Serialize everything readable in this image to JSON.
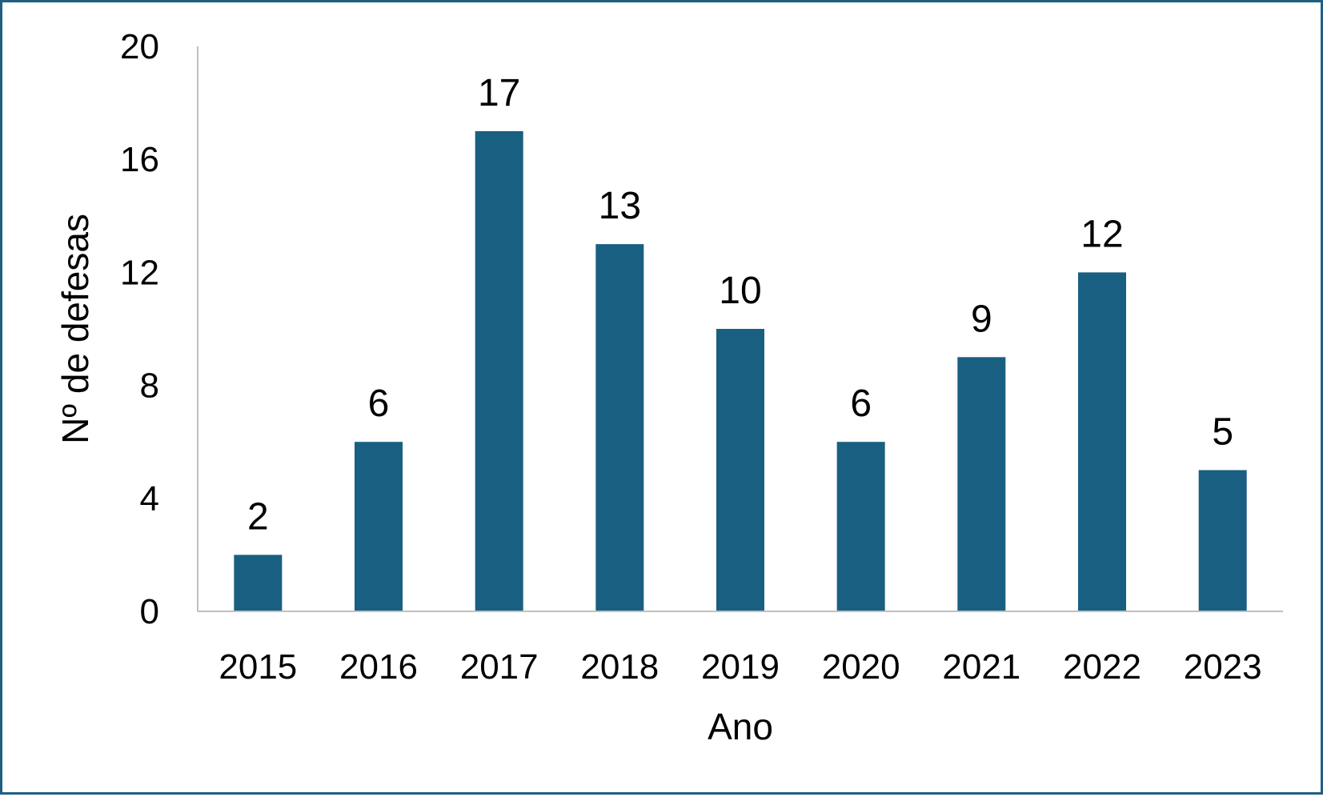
{
  "chart_data": {
    "type": "bar",
    "categories": [
      "2015",
      "2016",
      "2017",
      "2018",
      "2019",
      "2020",
      "2021",
      "2022",
      "2023"
    ],
    "values": [
      2,
      6,
      17,
      13,
      10,
      6,
      9,
      12,
      5
    ],
    "title": "",
    "xlabel": "Ano",
    "ylabel": "Nº de defesas",
    "ylim": [
      0,
      20
    ],
    "yticks": [
      0,
      4,
      8,
      12,
      16,
      20
    ],
    "grid": false,
    "data_labels": true,
    "bar_color": "#185f82",
    "frame_color": "#1f5f82"
  }
}
